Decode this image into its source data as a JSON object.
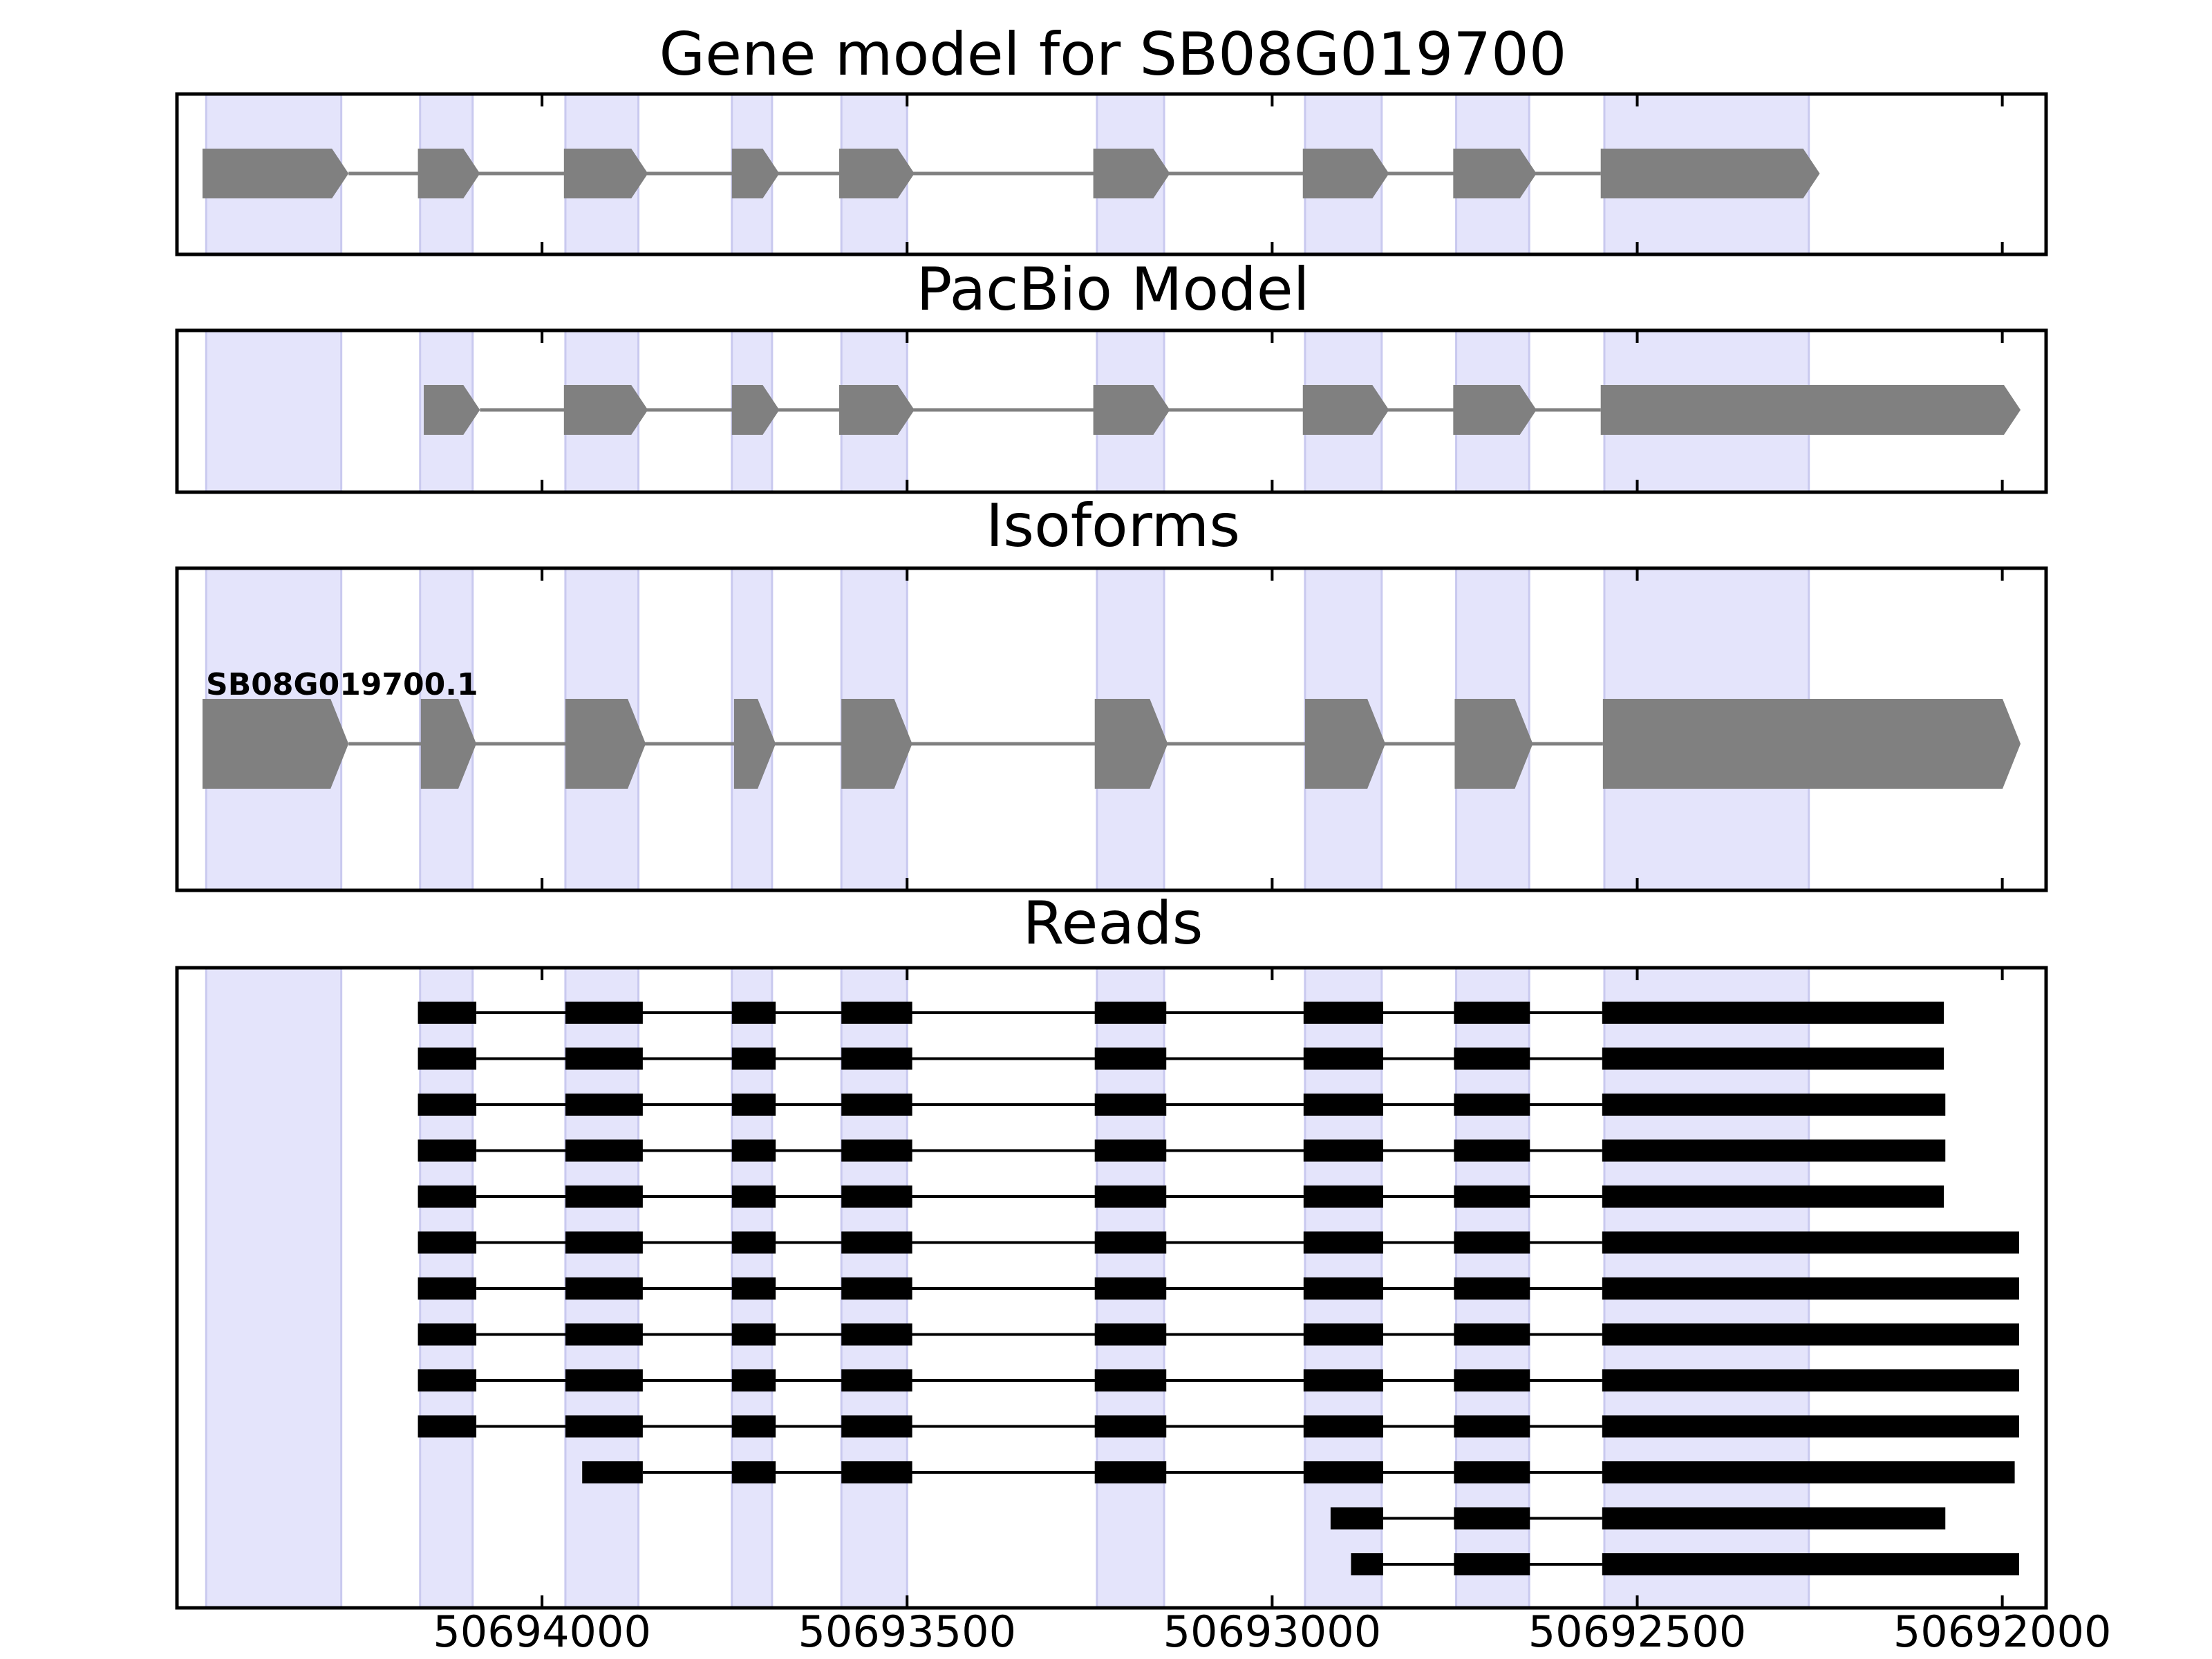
{
  "chart_data": {
    "type": "gene-track",
    "x_reversed": true,
    "x_range": [
      50694500,
      50691940
    ],
    "x_ticks": [
      50694000,
      50693500,
      50693000,
      50692500,
      50692000
    ],
    "x_tick_labels": [
      "50694000",
      "50693500",
      "50693000",
      "50692500",
      "50692000"
    ],
    "highlight_color": "#e4e4fb",
    "highlight_edge_color": "#c9c9ef",
    "exon_color": "#808080",
    "read_color": "#000000",
    "highlight_regions": [
      [
        50694460,
        50694275
      ],
      [
        50694167,
        50694095
      ],
      [
        50693968,
        50693868
      ],
      [
        50693740,
        50693685
      ],
      [
        50693590,
        50693500
      ],
      [
        50693240,
        50693148
      ],
      [
        50692955,
        50692850
      ],
      [
        50692748,
        50692648
      ],
      [
        50692545,
        50692265
      ]
    ],
    "panels": [
      {
        "id": "gene-model",
        "title": "Gene model for SB08G019700",
        "models": [
          {
            "label": "",
            "exons": [
              [
                50694465,
                50694265
              ],
              [
                50694170,
                50694085
              ],
              [
                50693970,
                50693855
              ],
              [
                50693740,
                50693675
              ],
              [
                50693593,
                50693490
              ],
              [
                50693245,
                50693140
              ],
              [
                50692958,
                50692840
              ],
              [
                50692752,
                50692638
              ],
              [
                50692550,
                50692250
              ]
            ]
          }
        ]
      },
      {
        "id": "pacbio-model",
        "title": "PacBio Model",
        "models": [
          {
            "label": "",
            "exons": [
              [
                50694162,
                50694085
              ],
              [
                50693970,
                50693855
              ],
              [
                50693740,
                50693675
              ],
              [
                50693593,
                50693490
              ],
              [
                50693245,
                50693140
              ],
              [
                50692958,
                50692840
              ],
              [
                50692752,
                50692638
              ],
              [
                50692550,
                50691975
              ]
            ]
          }
        ]
      },
      {
        "id": "isoforms",
        "title": "Isoforms",
        "models": [
          {
            "label": "SB08G019700.1",
            "exons": [
              [
                50694465,
                50694265
              ],
              [
                50694166,
                50694090
              ],
              [
                50693968,
                50693858
              ],
              [
                50693737,
                50693680
              ],
              [
                50693590,
                50693493
              ],
              [
                50693243,
                50693143
              ],
              [
                50692955,
                50692845
              ],
              [
                50692750,
                50692643
              ],
              [
                50692547,
                50691975
              ]
            ]
          }
        ]
      },
      {
        "id": "reads",
        "title": "Reads",
        "reads": [
          [
            [
              50694170,
              50694090
            ],
            [
              50693968,
              50693862
            ],
            [
              50693740,
              50693680
            ],
            [
              50693590,
              50693493
            ],
            [
              50693243,
              50693145
            ],
            [
              50692957,
              50692848
            ],
            [
              50692751,
              50692647
            ],
            [
              50692548,
              50692080
            ]
          ],
          [
            [
              50694170,
              50694090
            ],
            [
              50693968,
              50693862
            ],
            [
              50693740,
              50693680
            ],
            [
              50693590,
              50693493
            ],
            [
              50693243,
              50693145
            ],
            [
              50692957,
              50692848
            ],
            [
              50692751,
              50692647
            ],
            [
              50692548,
              50692080
            ]
          ],
          [
            [
              50694170,
              50694090
            ],
            [
              50693968,
              50693862
            ],
            [
              50693740,
              50693680
            ],
            [
              50693590,
              50693493
            ],
            [
              50693243,
              50693145
            ],
            [
              50692957,
              50692848
            ],
            [
              50692751,
              50692647
            ],
            [
              50692548,
              50692078
            ]
          ],
          [
            [
              50694170,
              50694090
            ],
            [
              50693968,
              50693862
            ],
            [
              50693740,
              50693680
            ],
            [
              50693590,
              50693493
            ],
            [
              50693243,
              50693145
            ],
            [
              50692957,
              50692848
            ],
            [
              50692751,
              50692647
            ],
            [
              50692548,
              50692078
            ]
          ],
          [
            [
              50694170,
              50694090
            ],
            [
              50693968,
              50693862
            ],
            [
              50693740,
              50693680
            ],
            [
              50693590,
              50693493
            ],
            [
              50693243,
              50693145
            ],
            [
              50692957,
              50692848
            ],
            [
              50692751,
              50692647
            ],
            [
              50692548,
              50692080
            ]
          ],
          [
            [
              50694170,
              50694090
            ],
            [
              50693968,
              50693862
            ],
            [
              50693740,
              50693680
            ],
            [
              50693590,
              50693493
            ],
            [
              50693243,
              50693145
            ],
            [
              50692957,
              50692848
            ],
            [
              50692751,
              50692647
            ],
            [
              50692548,
              50691977
            ]
          ],
          [
            [
              50694170,
              50694090
            ],
            [
              50693968,
              50693862
            ],
            [
              50693740,
              50693680
            ],
            [
              50693590,
              50693493
            ],
            [
              50693243,
              50693145
            ],
            [
              50692957,
              50692848
            ],
            [
              50692751,
              50692647
            ],
            [
              50692548,
              50691977
            ]
          ],
          [
            [
              50694170,
              50694090
            ],
            [
              50693968,
              50693862
            ],
            [
              50693740,
              50693680
            ],
            [
              50693590,
              50693493
            ],
            [
              50693243,
              50693145
            ],
            [
              50692957,
              50692848
            ],
            [
              50692751,
              50692647
            ],
            [
              50692548,
              50691977
            ]
          ],
          [
            [
              50694170,
              50694090
            ],
            [
              50693968,
              50693862
            ],
            [
              50693740,
              50693680
            ],
            [
              50693590,
              50693493
            ],
            [
              50693243,
              50693145
            ],
            [
              50692957,
              50692848
            ],
            [
              50692751,
              50692647
            ],
            [
              50692548,
              50691977
            ]
          ],
          [
            [
              50694170,
              50694090
            ],
            [
              50693968,
              50693862
            ],
            [
              50693740,
              50693680
            ],
            [
              50693590,
              50693493
            ],
            [
              50693243,
              50693145
            ],
            [
              50692957,
              50692848
            ],
            [
              50692751,
              50692647
            ],
            [
              50692548,
              50691977
            ]
          ],
          [
            [
              50693945,
              50693862
            ],
            [
              50693740,
              50693680
            ],
            [
              50693590,
              50693493
            ],
            [
              50693243,
              50693145
            ],
            [
              50692957,
              50692848
            ],
            [
              50692751,
              50692647
            ],
            [
              50692548,
              50691983
            ]
          ],
          [
            [
              50692920,
              50692848
            ],
            [
              50692751,
              50692647
            ],
            [
              50692548,
              50692078
            ]
          ],
          [
            [
              50692892,
              50692848
            ],
            [
              50692751,
              50692647
            ],
            [
              50692548,
              50691977
            ]
          ]
        ]
      }
    ]
  }
}
